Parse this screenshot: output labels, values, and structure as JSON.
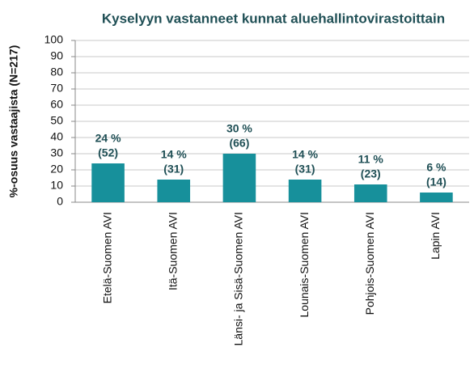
{
  "chart_data": {
    "type": "bar",
    "title": "Kyselyyn vastanneet kunnat aluehallintovirastoittain",
    "y_label": "%-osuus vastaajista (N=217)",
    "categories": [
      "Etelä-Suomen AVI",
      "Itä-Suomen AVI",
      "Länsi- ja Sisä-Suomen AVI",
      "Lounais-Suomen AVI",
      "Pohjois-Suomen AVI",
      "Lapin AVI"
    ],
    "values": [
      24,
      14,
      30,
      14,
      11,
      6
    ],
    "value_labels": [
      "24 %",
      "14 %",
      "30 %",
      "14 %",
      "11 %",
      "6 %"
    ],
    "count_labels": [
      "(52)",
      "(31)",
      "(66)",
      "(31)",
      "(23)",
      "(14)"
    ],
    "color": "#17909b",
    "ylim": [
      0,
      100
    ],
    "yticks": [
      0,
      10,
      20,
      30,
      40,
      50,
      60,
      70,
      80,
      90,
      100
    ],
    "grid": true
  }
}
